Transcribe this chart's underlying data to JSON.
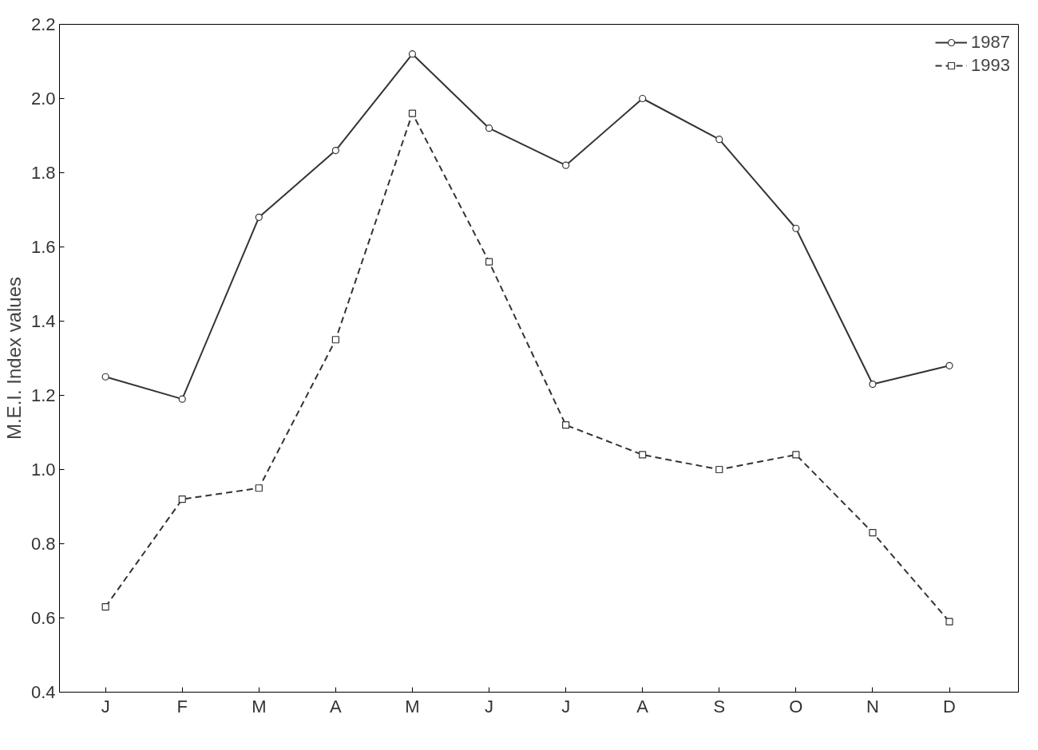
{
  "chart_data": {
    "type": "line",
    "ylabel": "M.E.I. Index values",
    "categories": [
      "J",
      "F",
      "M",
      "A",
      "M",
      "J",
      "J",
      "A",
      "S",
      "O",
      "N",
      "D"
    ],
    "series": [
      {
        "name": "1987",
        "color": "#333333",
        "marker": "circle",
        "line_style": "solid",
        "values": [
          1.25,
          1.19,
          1.68,
          1.86,
          2.12,
          1.92,
          1.82,
          2.0,
          1.89,
          1.65,
          1.23,
          1.28
        ]
      },
      {
        "name": "1993",
        "color": "#333333",
        "marker": "square",
        "line_style": "dashed",
        "values": [
          0.63,
          0.92,
          0.95,
          1.35,
          1.96,
          1.56,
          1.12,
          1.04,
          1.0,
          1.04,
          0.83,
          0.59
        ]
      }
    ],
    "ylim": [
      0.4,
      2.2
    ],
    "yticks": [
      0.4,
      0.6,
      0.8,
      {
        "value": 1,
        "label": "1.0"
      },
      1.2,
      1.4,
      1.6,
      1.8,
      {
        "value": 2,
        "label": "2.0"
      },
      2.2
    ],
    "grid": false,
    "legend": "top right"
  }
}
